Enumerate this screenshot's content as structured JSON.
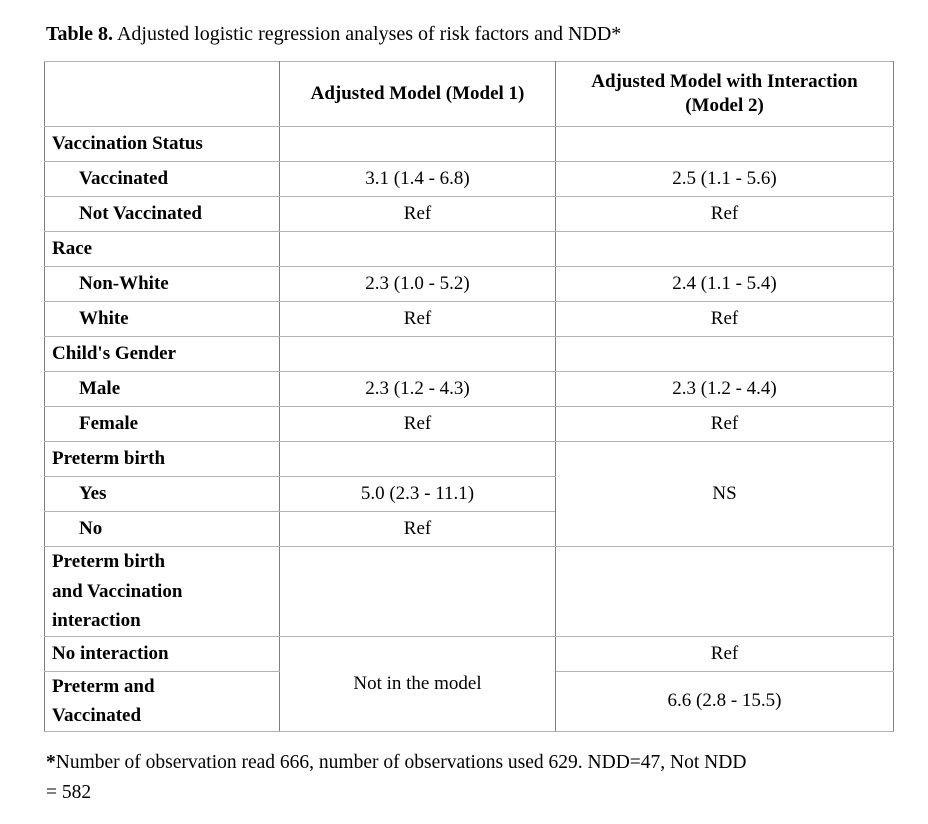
{
  "title": {
    "prefix": "Table 8.",
    "text": " Adjusted logistic regression analyses of risk factors and NDD*"
  },
  "table": {
    "header": {
      "col1": "",
      "col2": "Adjusted Model (Model 1)",
      "col3": "Adjusted Model with Interaction\n(Model 2)"
    },
    "rows": {
      "vaccination_status": {
        "label": "Vaccination Status",
        "m1": "",
        "m2": ""
      },
      "vaccinated": {
        "label": "Vaccinated",
        "m1": "3.1 (1.4 - 6.8)",
        "m2": "2.5 (1.1 - 5.6)"
      },
      "not_vaccinated": {
        "label": "Not Vaccinated",
        "m1": "Ref",
        "m2": "Ref"
      },
      "race": {
        "label": "Race",
        "m1": "",
        "m2": ""
      },
      "non_white": {
        "label": "Non-White",
        "m1": "2.3 (1.0 - 5.2)",
        "m2": "2.4 (1.1 - 5.4)"
      },
      "white": {
        "label": "White",
        "m1": "Ref",
        "m2": "Ref"
      },
      "childs_gender": {
        "label": "Child's Gender",
        "m1": "",
        "m2": ""
      },
      "male": {
        "label": "Male",
        "m1": "2.3 (1.2 - 4.3)",
        "m2": "2.3 (1.2 - 4.4)"
      },
      "female": {
        "label": "Female",
        "m1": "Ref",
        "m2": "Ref"
      },
      "preterm_birth": {
        "label": "Preterm birth",
        "m1": "",
        "m2_merged": "NS"
      },
      "yes": {
        "label": "Yes",
        "m1": "5.0 (2.3 - 11.1)"
      },
      "no": {
        "label": "No",
        "m1": "Ref"
      },
      "interaction_header": {
        "label": "Preterm birth\nand Vaccination\ninteraction",
        "m1": "",
        "m2": ""
      },
      "no_interaction": {
        "label": "No interaction",
        "m1_merged": "Not in the model",
        "m2": "Ref"
      },
      "preterm_and_vaccinated": {
        "label": "Preterm and\nVaccinated",
        "m2": "6.6 (2.8 - 15.5)"
      }
    }
  },
  "footnote": {
    "marker": "*",
    "text": "Number of observation read 666, number of observations used 629. NDD=47, Not NDD\n= 582"
  }
}
